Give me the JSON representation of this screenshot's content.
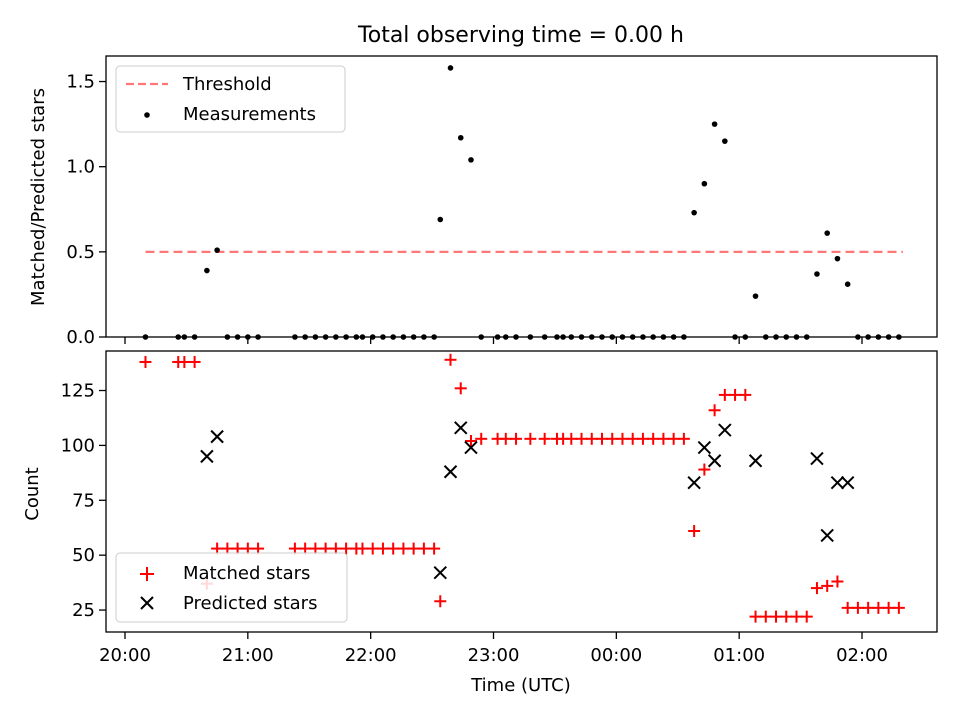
{
  "chart_data": [
    {
      "type": "scatter",
      "title": "Total observing time = 0.00 h",
      "xlabel": "",
      "ylabel": "Matched/Predicted stars",
      "ylim": [
        0,
        1.65
      ],
      "yticks": [
        "0.0",
        "0.5",
        "1.0",
        "1.5"
      ],
      "legend_position": "top-left",
      "series": [
        {
          "name": "Threshold",
          "style": "dashed-line",
          "color": "#ff7777",
          "points": [
            [
              "20:10",
              0.5
            ],
            [
              "02:20",
              0.5
            ]
          ]
        },
        {
          "name": "Measurements",
          "style": "dot",
          "color": "#000000",
          "points": [
            [
              "20:10",
              0
            ],
            [
              "20:26",
              0
            ],
            [
              "20:29",
              0
            ],
            [
              "20:34",
              0
            ],
            [
              "20:40",
              0.39
            ],
            [
              "20:45",
              0.51
            ],
            [
              "20:50",
              0
            ],
            [
              "20:55",
              0
            ],
            [
              "21:00",
              0
            ],
            [
              "21:05",
              0
            ],
            [
              "21:23",
              0
            ],
            [
              "21:28",
              0
            ],
            [
              "21:33",
              0
            ],
            [
              "21:38",
              0
            ],
            [
              "21:43",
              0
            ],
            [
              "21:48",
              0
            ],
            [
              "21:53",
              0
            ],
            [
              "21:56",
              0
            ],
            [
              "22:01",
              0
            ],
            [
              "22:06",
              0
            ],
            [
              "22:11",
              0
            ],
            [
              "22:16",
              0
            ],
            [
              "22:21",
              0
            ],
            [
              "22:26",
              0
            ],
            [
              "22:31",
              0
            ],
            [
              "22:34",
              0.69
            ],
            [
              "22:39",
              1.58
            ],
            [
              "22:44",
              1.17
            ],
            [
              "22:49",
              1.04
            ],
            [
              "22:54",
              0
            ],
            [
              "23:02",
              0
            ],
            [
              "23:06",
              0
            ],
            [
              "23:11",
              0
            ],
            [
              "23:18",
              0
            ],
            [
              "23:25",
              0
            ],
            [
              "23:31",
              0
            ],
            [
              "23:34",
              0
            ],
            [
              "23:38",
              0
            ],
            [
              "23:43",
              0
            ],
            [
              "23:48",
              0
            ],
            [
              "23:53",
              0
            ],
            [
              "23:58",
              0
            ],
            [
              "00:03",
              0
            ],
            [
              "00:08",
              0
            ],
            [
              "00:13",
              0
            ],
            [
              "00:18",
              0
            ],
            [
              "00:23",
              0
            ],
            [
              "00:28",
              0
            ],
            [
              "00:33",
              0
            ],
            [
              "00:38",
              0.73
            ],
            [
              "00:43",
              0.9
            ],
            [
              "00:48",
              1.25
            ],
            [
              "00:53",
              1.15
            ],
            [
              "00:58",
              0
            ],
            [
              "01:03",
              0
            ],
            [
              "01:08",
              0.24
            ],
            [
              "01:13",
              0
            ],
            [
              "01:18",
              0
            ],
            [
              "01:23",
              0
            ],
            [
              "01:28",
              0
            ],
            [
              "01:33",
              0
            ],
            [
              "01:38",
              0.37
            ],
            [
              "01:43",
              0.61
            ],
            [
              "01:48",
              0.46
            ],
            [
              "01:53",
              0.31
            ],
            [
              "01:58",
              0
            ],
            [
              "02:03",
              0
            ],
            [
              "02:08",
              0
            ],
            [
              "02:13",
              0
            ],
            [
              "02:18",
              0
            ]
          ]
        }
      ]
    },
    {
      "type": "scatter",
      "title": "",
      "xlabel": "Time (UTC)",
      "ylabel": "Count",
      "ylim": [
        15,
        143
      ],
      "yticks": [
        "25",
        "50",
        "75",
        "100",
        "125"
      ],
      "xticks": [
        "20:00",
        "21:00",
        "22:00",
        "23:00",
        "00:00",
        "01:00",
        "02:00"
      ],
      "legend_position": "bottom-left",
      "series": [
        {
          "name": "Matched stars",
          "style": "plus",
          "color": "#ff0000",
          "points": [
            [
              "20:10",
              138
            ],
            [
              "20:26",
              138
            ],
            [
              "20:29",
              138
            ],
            [
              "20:34",
              138
            ],
            [
              "20:40",
              37
            ],
            [
              "20:45",
              53
            ],
            [
              "20:50",
              53
            ],
            [
              "20:55",
              53
            ],
            [
              "21:00",
              53
            ],
            [
              "21:05",
              53
            ],
            [
              "21:23",
              53
            ],
            [
              "21:28",
              53
            ],
            [
              "21:33",
              53
            ],
            [
              "21:38",
              53
            ],
            [
              "21:43",
              53
            ],
            [
              "21:48",
              53
            ],
            [
              "21:53",
              53
            ],
            [
              "21:56",
              53
            ],
            [
              "22:01",
              53
            ],
            [
              "22:06",
              53
            ],
            [
              "22:11",
              53
            ],
            [
              "22:16",
              53
            ],
            [
              "22:21",
              53
            ],
            [
              "22:26",
              53
            ],
            [
              "22:31",
              53
            ],
            [
              "22:34",
              29
            ],
            [
              "22:39",
              139
            ],
            [
              "22:44",
              126
            ],
            [
              "22:49",
              102
            ],
            [
              "22:54",
              103
            ],
            [
              "23:02",
              103
            ],
            [
              "23:06",
              103
            ],
            [
              "23:11",
              103
            ],
            [
              "23:18",
              103
            ],
            [
              "23:25",
              103
            ],
            [
              "23:31",
              103
            ],
            [
              "23:34",
              103
            ],
            [
              "23:38",
              103
            ],
            [
              "23:43",
              103
            ],
            [
              "23:48",
              103
            ],
            [
              "23:53",
              103
            ],
            [
              "23:58",
              103
            ],
            [
              "00:03",
              103
            ],
            [
              "00:08",
              103
            ],
            [
              "00:13",
              103
            ],
            [
              "00:18",
              103
            ],
            [
              "00:23",
              103
            ],
            [
              "00:28",
              103
            ],
            [
              "00:33",
              103
            ],
            [
              "00:38",
              61
            ],
            [
              "00:43",
              89
            ],
            [
              "00:48",
              116
            ],
            [
              "00:53",
              123
            ],
            [
              "00:58",
              123
            ],
            [
              "01:03",
              123
            ],
            [
              "01:08",
              22
            ],
            [
              "01:13",
              22
            ],
            [
              "01:18",
              22
            ],
            [
              "01:23",
              22
            ],
            [
              "01:28",
              22
            ],
            [
              "01:33",
              22
            ],
            [
              "01:38",
              35
            ],
            [
              "01:43",
              36
            ],
            [
              "01:48",
              38
            ],
            [
              "01:53",
              26
            ],
            [
              "01:58",
              26
            ],
            [
              "02:03",
              26
            ],
            [
              "02:08",
              26
            ],
            [
              "02:13",
              26
            ],
            [
              "02:18",
              26
            ]
          ]
        },
        {
          "name": "Predicted stars",
          "style": "x",
          "color": "#000000",
          "points": [
            [
              "20:40",
              95
            ],
            [
              "20:45",
              104
            ],
            [
              "22:34",
              42
            ],
            [
              "22:39",
              88
            ],
            [
              "22:44",
              108
            ],
            [
              "22:49",
              99
            ],
            [
              "00:38",
              83
            ],
            [
              "00:43",
              99
            ],
            [
              "00:48",
              93
            ],
            [
              "00:53",
              107
            ],
            [
              "01:08",
              93
            ],
            [
              "01:38",
              94
            ],
            [
              "01:43",
              59
            ],
            [
              "01:48",
              83
            ],
            [
              "01:53",
              83
            ]
          ]
        }
      ]
    }
  ]
}
